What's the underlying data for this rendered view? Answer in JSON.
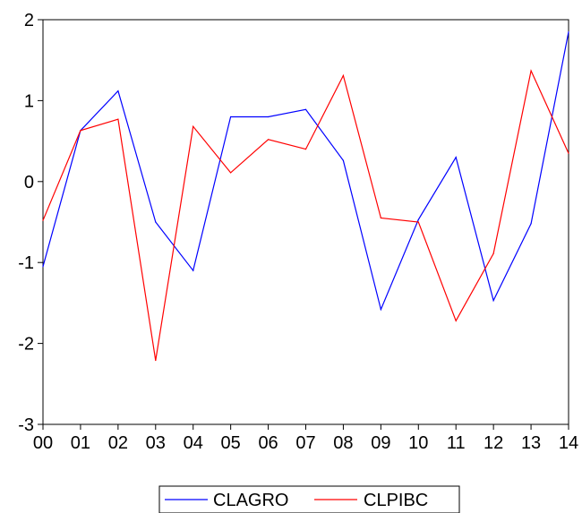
{
  "chart_data": {
    "type": "line",
    "title": "",
    "xlabel": "",
    "ylabel": "",
    "categories": [
      "00",
      "01",
      "02",
      "03",
      "04",
      "05",
      "06",
      "07",
      "08",
      "09",
      "10",
      "11",
      "12",
      "13",
      "14"
    ],
    "ylim": [
      -3,
      2
    ],
    "yticks": [
      -3,
      -2,
      -1,
      0,
      1,
      2
    ],
    "grid": false,
    "legend_position": "bottom-center",
    "series": [
      {
        "name": "CLAGRO",
        "color": "#0000ff",
        "values": [
          -1.05,
          0.63,
          1.12,
          -0.5,
          -1.1,
          0.8,
          0.8,
          0.89,
          0.26,
          -1.58,
          -0.47,
          0.3,
          -1.47,
          -0.52,
          1.85
        ]
      },
      {
        "name": "CLPIBC",
        "color": "#ff0000",
        "values": [
          -0.48,
          0.63,
          0.77,
          -2.21,
          0.68,
          0.11,
          0.52,
          0.4,
          1.31,
          -0.45,
          -0.5,
          -1.72,
          -0.89,
          1.37,
          0.35
        ]
      }
    ]
  }
}
